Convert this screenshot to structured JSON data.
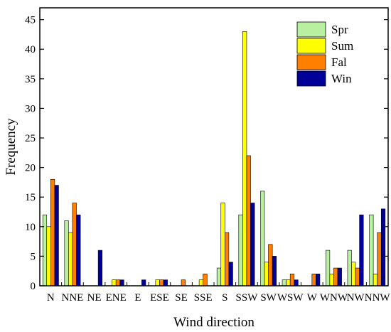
{
  "chart_data": {
    "type": "bar",
    "xlabel": "Wind direction",
    "ylabel": "Frequency",
    "ylim": [
      0,
      47
    ],
    "yticks": [
      0,
      5,
      10,
      15,
      20,
      25,
      30,
      35,
      40,
      45
    ],
    "grid": false,
    "legend_position": "top-right",
    "categories": [
      "N",
      "NNE",
      "NE",
      "ENE",
      "E",
      "ESE",
      "SE",
      "SSE",
      "S",
      "SSW",
      "SW",
      "WSW",
      "W",
      "WNW",
      "NW",
      "NNW"
    ],
    "series": [
      {
        "name": "Spr",
        "color": "#b8f0a0",
        "values": [
          12,
          11,
          0,
          0,
          0,
          0,
          0,
          0,
          3,
          12,
          16,
          1,
          0,
          6,
          6,
          12
        ]
      },
      {
        "name": "Sum",
        "color": "#ffff00",
        "values": [
          10,
          9,
          0,
          1,
          0,
          1,
          0,
          1,
          14,
          43,
          4,
          1,
          0,
          2,
          4,
          2
        ]
      },
      {
        "name": "Fal",
        "color": "#ff7f00",
        "values": [
          18,
          14,
          0,
          1,
          0,
          1,
          1,
          2,
          9,
          22,
          7,
          2,
          2,
          3,
          3,
          9
        ]
      },
      {
        "name": "Win",
        "color": "#000099",
        "values": [
          17,
          12,
          6,
          1,
          1,
          1,
          0,
          0,
          4,
          14,
          5,
          1,
          2,
          3,
          12,
          13
        ]
      }
    ]
  }
}
